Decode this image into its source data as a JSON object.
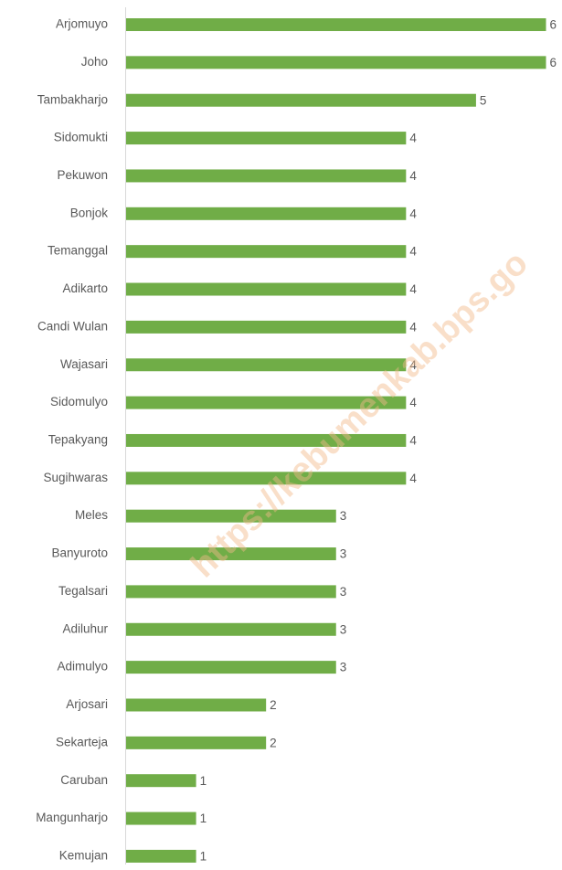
{
  "chart_data": {
    "type": "bar",
    "orientation": "horizontal",
    "categories": [
      "Arjomuyo",
      "Joho",
      "Tambakharjo",
      "Sidomukti",
      "Pekuwon",
      "Bonjok",
      "Temanggal",
      "Adikarto",
      "Candi Wulan",
      "Wajasari",
      "Sidomulyo",
      "Tepakyang",
      "Sugihwaras",
      "Meles",
      "Banyuroto",
      "Tegalsari",
      "Adiluhur",
      "Adimulyo",
      "Arjosari",
      "Sekarteja",
      "Caruban",
      "Mangunharjo",
      "Kemujan"
    ],
    "values": [
      6,
      6,
      5,
      4,
      4,
      4,
      4,
      4,
      4,
      4,
      4,
      4,
      4,
      3,
      3,
      3,
      3,
      3,
      2,
      2,
      1,
      1,
      1
    ],
    "color": "#70ad47",
    "xlim": [
      0,
      6
    ],
    "watermark": "https://kebumenkab.bps.go"
  }
}
